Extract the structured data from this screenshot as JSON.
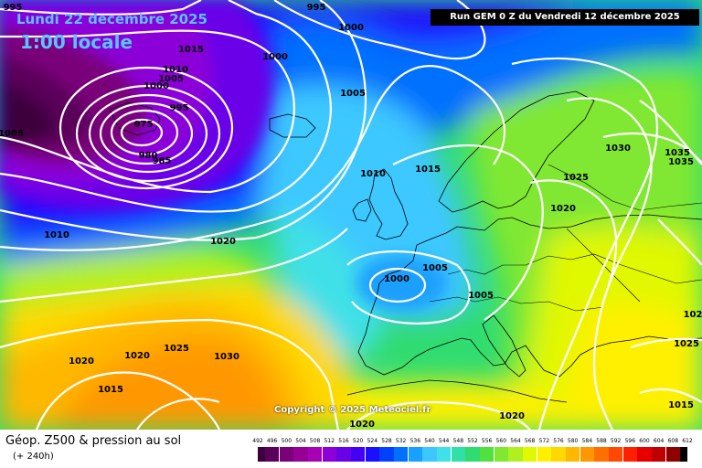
{
  "map": {
    "valid_date": "Lundi 22 decembre 2025",
    "local_time": "1:00 locale",
    "run_info": "Run GEM 0 Z du Vendredi 12 décembre 2025",
    "copyright": "Copyright © 2025 Meteociel.fr",
    "field_title": "Géop. Z500 & pression au sol",
    "lead_time": "(+ 240h)"
  },
  "legend": {
    "ticks": [
      {
        "label": "492",
        "color": "#3d003d"
      },
      {
        "label": "496",
        "color": "#5a005a"
      },
      {
        "label": "500",
        "color": "#7a007a"
      },
      {
        "label": "504",
        "color": "#970097"
      },
      {
        "label": "508",
        "color": "#a800b4"
      },
      {
        "label": "512",
        "color": "#8b00d8"
      },
      {
        "label": "516",
        "color": "#6a00e8"
      },
      {
        "label": "520",
        "color": "#4400f4"
      },
      {
        "label": "524",
        "color": "#1a10ff"
      },
      {
        "label": "528",
        "color": "#0040ff"
      },
      {
        "label": "532",
        "color": "#0070ff"
      },
      {
        "label": "536",
        "color": "#1aa0ff"
      },
      {
        "label": "540",
        "color": "#3cc8ff"
      },
      {
        "label": "544",
        "color": "#40e0e8"
      },
      {
        "label": "548",
        "color": "#30e0a8"
      },
      {
        "label": "552",
        "color": "#30dc70"
      },
      {
        "label": "556",
        "color": "#50e040"
      },
      {
        "label": "560",
        "color": "#80e830"
      },
      {
        "label": "564",
        "color": "#b0f020"
      },
      {
        "label": "568",
        "color": "#e0f800"
      },
      {
        "label": "572",
        "color": "#fff000"
      },
      {
        "label": "576",
        "color": "#ffd800"
      },
      {
        "label": "580",
        "color": "#ffb800"
      },
      {
        "label": "584",
        "color": "#ff9800"
      },
      {
        "label": "588",
        "color": "#ff7000"
      },
      {
        "label": "592",
        "color": "#ff4800"
      },
      {
        "label": "596",
        "color": "#ff2000"
      },
      {
        "label": "600",
        "color": "#e80000"
      },
      {
        "label": "604",
        "color": "#c00000"
      },
      {
        "label": "608",
        "color": "#900000"
      },
      {
        "label": "612",
        "color": "#000000"
      }
    ]
  },
  "isobar_labels": [
    "995",
    "995",
    "1000",
    "1015",
    "1010",
    "1005",
    "1000",
    "995",
    "975",
    "980",
    "985",
    "1005",
    "1005",
    "1010",
    "1015",
    "1010",
    "1020",
    "1000",
    "1005",
    "1005",
    "1030",
    "1025",
    "1020",
    "1035",
    "1035",
    "1025",
    "1020",
    "1020",
    "1025",
    "1030",
    "1015",
    "1020",
    "1020",
    "1015",
    "102",
    "1000"
  ]
}
